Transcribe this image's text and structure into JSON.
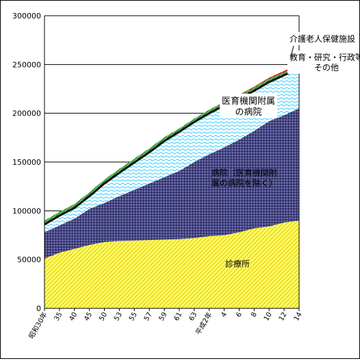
{
  "chart_data": {
    "type": "area",
    "stacked": true,
    "title": "",
    "xlabel": "",
    "ylabel": "",
    "ylim": [
      0,
      300000
    ],
    "yticks": [
      0,
      50000,
      100000,
      150000,
      200000,
      250000,
      300000
    ],
    "ytick_labels": [
      "0",
      "50000",
      "100000",
      "150000",
      "200000",
      "250000",
      "300000"
    ],
    "grid": "horizontal",
    "x_tick_labels": [
      "昭和30年",
      "35",
      "40",
      "45",
      "50",
      "53",
      "55",
      "57",
      "59",
      "61",
      "63",
      "平成2年",
      "4",
      "6",
      "8",
      "10",
      "12",
      "14"
    ],
    "series": [
      {
        "name": "診療所",
        "label": "診療所",
        "color": "#ffff66",
        "pattern": "diagonal-hatch",
        "values": [
          51000,
          57000,
          61000,
          65000,
          68000,
          69000,
          69500,
          70000,
          70500,
          71000,
          72000,
          74000,
          75000,
          78000,
          82000,
          84000,
          88000,
          90000
        ]
      },
      {
        "name": "病院（医育機関附属の病院を除く）",
        "label_lines": [
          "病院（医育機関附",
          "属の病院を除く）"
        ],
        "color": "#8080c0",
        "pattern": "grid",
        "values": [
          27000,
          28000,
          31000,
          37000,
          40000,
          46000,
          52000,
          58000,
          64000,
          70000,
          78000,
          84000,
          90000,
          95000,
          100000,
          108000,
          110000,
          115000
        ]
      },
      {
        "name": "医育機関附属の病院",
        "label_lines": [
          "医育機関附属",
          "の病院"
        ],
        "color": "#33ccff",
        "pattern": "wave",
        "values": [
          8000,
          10000,
          11000,
          13000,
          20000,
          24000,
          28000,
          32000,
          37000,
          40000,
          41000,
          42000,
          43000,
          42000,
          41000,
          40000,
          41000,
          41000
        ]
      },
      {
        "name": "教育・研究・行政等その他",
        "label_lines": [
          "教育・研究・行政等",
          "その他"
        ],
        "color": "#66cc66",
        "pattern": "diagonal-hatch",
        "values": [
          4000,
          4000,
          4000,
          4000,
          4000,
          4000,
          4000,
          4000,
          4000,
          3500,
          3500,
          3500,
          3500,
          3500,
          3500,
          3500,
          3000,
          3000
        ]
      },
      {
        "name": "介護老人保健施設",
        "label": "介護老人保健施設",
        "color": "#cc2222",
        "pattern": "solid",
        "values": [
          0,
          0,
          0,
          0,
          0,
          0,
          0,
          0,
          0,
          0,
          0,
          200,
          300,
          500,
          800,
          1000,
          1400,
          1800
        ]
      }
    ]
  }
}
